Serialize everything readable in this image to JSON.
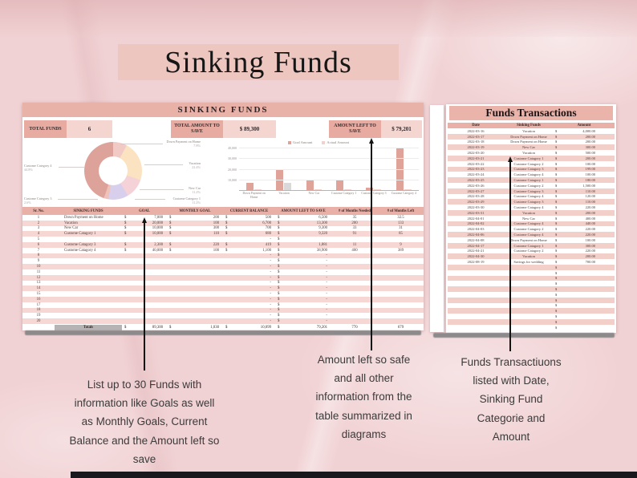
{
  "page": {
    "banner_title": "Sinking Funds"
  },
  "sheet": {
    "title": "SINKING FUNDS",
    "summary": {
      "total_funds_label": "TOTAL FUNDS",
      "total_funds_value": "6",
      "total_amount_label": "TOTAL AMOUNT TO SAVE",
      "total_amount_value": "$ 89,300",
      "amount_left_label": "AMOUNT LEFT TO SAVE",
      "amount_left_value": "$ 79,201"
    },
    "table": {
      "headers": [
        "Sr. No.",
        "SINKING FUNDS",
        "GOAL",
        "MONTHLY GOAL",
        "CURRENT BALANCE",
        "AMOUNT LEFT TO SAVE",
        "# of Months Needed",
        "# of Months Left"
      ],
      "rows": [
        {
          "sr": "1",
          "name": "Down Payment on Home",
          "g": [
            "$",
            "7,000"
          ],
          "m": [
            "$",
            "200"
          ],
          "b": [
            "$",
            "500"
          ],
          "l": [
            "$",
            "6,500"
          ],
          "n": "35",
          "ml": "32.5"
        },
        {
          "sr": "2",
          "name": "Vacation",
          "g": [
            "$",
            "20,000"
          ],
          "m": [
            "$",
            "100"
          ],
          "b": [
            "$",
            "6,700"
          ],
          "l": [
            "$",
            "13,300"
          ],
          "n": "200",
          "ml": "133"
        },
        {
          "sr": "3",
          "name": "New Car",
          "g": [
            "$",
            "10,000"
          ],
          "m": [
            "$",
            "300"
          ],
          "b": [
            "$",
            "700"
          ],
          "l": [
            "$",
            "9,300"
          ],
          "n": "33",
          "ml": "31"
        },
        {
          "sr": "4",
          "name": "Custome Catagory 1",
          "g": [
            "$",
            "10,000"
          ],
          "m": [
            "$",
            "110"
          ],
          "b": [
            "$",
            "680"
          ],
          "l": [
            "$",
            "9,320"
          ],
          "n": "91",
          "ml": "85"
        },
        {
          "sr": "5",
          "name": "",
          "g": [
            "",
            ""
          ],
          "m": [
            "",
            ""
          ],
          "b": [
            "",
            "-"
          ],
          "l": [
            "$",
            ""
          ],
          "n": "",
          "ml": ""
        },
        {
          "sr": "6",
          "name": "Custome Catagory 3",
          "g": [
            "$",
            "2,300"
          ],
          "m": [
            "$",
            "220"
          ],
          "b": [
            "$",
            "419"
          ],
          "l": [
            "$",
            "1,881"
          ],
          "n": "11",
          "ml": "9"
        },
        {
          "sr": "7",
          "name": "Custome Catagory 4",
          "g": [
            "$",
            "40,000"
          ],
          "m": [
            "$",
            "100"
          ],
          "b": [
            "$",
            "1,100"
          ],
          "l": [
            "$",
            "38,900"
          ],
          "n": "400",
          "ml": "389"
        },
        {
          "sr": "8",
          "name": "",
          "g": [
            "",
            ""
          ],
          "m": [
            "",
            ""
          ],
          "b": [
            "",
            "-"
          ],
          "l": [
            "$",
            "-"
          ],
          "n": "",
          "ml": ""
        },
        {
          "sr": "9",
          "name": "",
          "g": [
            "",
            ""
          ],
          "m": [
            "",
            ""
          ],
          "b": [
            "",
            "-"
          ],
          "l": [
            "$",
            "-"
          ],
          "n": "",
          "ml": ""
        },
        {
          "sr": "10",
          "name": "",
          "g": [
            "",
            ""
          ],
          "m": [
            "",
            ""
          ],
          "b": [
            "",
            "-"
          ],
          "l": [
            "$",
            "-"
          ],
          "n": "",
          "ml": ""
        },
        {
          "sr": "11",
          "name": "",
          "g": [
            "",
            ""
          ],
          "m": [
            "",
            ""
          ],
          "b": [
            "",
            "-"
          ],
          "l": [
            "$",
            "-"
          ],
          "n": "",
          "ml": ""
        },
        {
          "sr": "12",
          "name": "",
          "g": [
            "",
            ""
          ],
          "m": [
            "",
            ""
          ],
          "b": [
            "",
            "-"
          ],
          "l": [
            "$",
            "-"
          ],
          "n": "",
          "ml": ""
        },
        {
          "sr": "13",
          "name": "",
          "g": [
            "",
            ""
          ],
          "m": [
            "",
            ""
          ],
          "b": [
            "",
            "-"
          ],
          "l": [
            "$",
            "-"
          ],
          "n": "",
          "ml": ""
        },
        {
          "sr": "14",
          "name": "",
          "g": [
            "",
            ""
          ],
          "m": [
            "",
            ""
          ],
          "b": [
            "",
            "-"
          ],
          "l": [
            "$",
            "-"
          ],
          "n": "",
          "ml": ""
        },
        {
          "sr": "15",
          "name": "",
          "g": [
            "",
            ""
          ],
          "m": [
            "",
            ""
          ],
          "b": [
            "",
            "-"
          ],
          "l": [
            "$",
            "-"
          ],
          "n": "",
          "ml": ""
        },
        {
          "sr": "16",
          "name": "",
          "g": [
            "",
            ""
          ],
          "m": [
            "",
            ""
          ],
          "b": [
            "",
            "-"
          ],
          "l": [
            "$",
            "-"
          ],
          "n": "",
          "ml": ""
        },
        {
          "sr": "17",
          "name": "",
          "g": [
            "",
            ""
          ],
          "m": [
            "",
            ""
          ],
          "b": [
            "",
            "-"
          ],
          "l": [
            "$",
            "-"
          ],
          "n": "",
          "ml": ""
        },
        {
          "sr": "18",
          "name": "",
          "g": [
            "",
            ""
          ],
          "m": [
            "",
            ""
          ],
          "b": [
            "",
            "-"
          ],
          "l": [
            "$",
            "-"
          ],
          "n": "",
          "ml": ""
        },
        {
          "sr": "19",
          "name": "",
          "g": [
            "",
            ""
          ],
          "m": [
            "",
            ""
          ],
          "b": [
            "",
            "-"
          ],
          "l": [
            "$",
            "-"
          ],
          "n": "",
          "ml": ""
        },
        {
          "sr": "20",
          "name": "",
          "g": [
            "",
            ""
          ],
          "m": [
            "",
            ""
          ],
          "b": [
            "",
            "-"
          ],
          "l": [
            "$",
            "-"
          ],
          "n": "",
          "ml": ""
        }
      ],
      "totals": {
        "label": "Totals",
        "g": [
          "$",
          "89,300"
        ],
        "m": [
          "$",
          "1,030"
        ],
        "b": [
          "$",
          "10,099"
        ],
        "l": [
          "$",
          "79,201"
        ],
        "n": "770",
        "ml": "679"
      }
    }
  },
  "chart_data": [
    {
      "type": "pie",
      "subtype": "donut",
      "title": "",
      "slices": [
        {
          "label": "Down Payment on Home",
          "pct_label": "7.8%",
          "value": 7.8,
          "color": "#f1cac6"
        },
        {
          "label": "Vacation",
          "pct_label": "22.4%",
          "value": 22.4,
          "color": "#fbe3c1"
        },
        {
          "label": "New Car",
          "pct_label": "11.2%",
          "value": 11.2,
          "color": "#f4d2d7"
        },
        {
          "label": "Custome Category 1",
          "pct_label": "11.2%",
          "value": 11.2,
          "color": "#d8cfec"
        },
        {
          "label": "Custome Category 3",
          "pct_label": "2.6%",
          "value": 2.6,
          "color": "#eec2bb"
        },
        {
          "label": "Custome Category 4",
          "pct_label": "44.8%",
          "value": 44.8,
          "color": "#dda29a"
        }
      ],
      "legend_position": "outside-labels-with-leader-lines"
    },
    {
      "type": "bar",
      "title": "",
      "categories": [
        "Down Payment on Home",
        "Vacation",
        "New Car",
        "Custome Category 1",
        "Custome Category 3",
        "Custome Category 4"
      ],
      "series": [
        {
          "name": "Goal Amount",
          "color": "#dfa39a",
          "values": [
            7000,
            20000,
            10000,
            10000,
            2300,
            40000
          ]
        },
        {
          "name": "Actual Amount",
          "color": "#f2d0cb",
          "values": [
            500,
            6700,
            700,
            680,
            419,
            1100
          ]
        }
      ],
      "actual_bar_colors": [
        "#f2d0cb",
        "#d9d9d9",
        "#f2d0cb",
        "#f2d0cb",
        "#f2d0cb",
        "#f2d0cb"
      ],
      "ylim": [
        0,
        40000
      ],
      "yticks": [
        "40,000",
        "30,000",
        "20,000",
        "10,000"
      ],
      "grid": true,
      "legend_position": "top"
    }
  ],
  "transactions": {
    "title": "Funds Transactions",
    "headers": [
      "Date",
      "Sinking Funds",
      "Amount"
    ],
    "rows": [
      [
        "2022-03-16",
        "Vacation",
        "4,000.00"
      ],
      [
        "2022-03-17",
        "Down Payment on Home",
        "200.00"
      ],
      [
        "2022-03-18",
        "Down Payment on Home",
        "200.00"
      ],
      [
        "2022-03-19",
        "New Car",
        "300.00"
      ],
      [
        "2022-03-20",
        "Vacation",
        "500.00"
      ],
      [
        "2022-03-21",
        "Custome Catagory 1",
        "200.00"
      ],
      [
        "2022-03-22",
        "Custome Catagory 2",
        "100.00"
      ],
      [
        "2022-03-23",
        "Custome Catagory 3",
        "199.00"
      ],
      [
        "2022-03-24",
        "Custome Catagory 4",
        "100.00"
      ],
      [
        "2022-03-25",
        "Custome Catagory 1",
        "180.00"
      ],
      [
        "2022-03-26",
        "Custome Catagory 2",
        "1,500.00"
      ],
      [
        "2022-03-27",
        "Custome Catagory 3",
        "110.00"
      ],
      [
        "2022-03-28",
        "Custome Catagory 4",
        "120.00"
      ],
      [
        "2022-03-29",
        "Custome Catagory 3",
        "110.00"
      ],
      [
        "2022-03-30",
        "Custome Catagory 4",
        "220.00"
      ],
      [
        "2022-03-31",
        "Vacation",
        "200.00"
      ],
      [
        "2022-04-01",
        "New Car",
        "400.00"
      ],
      [
        "2022-04-02",
        "Custome Catagory 4",
        "440.00"
      ],
      [
        "2022-04-03",
        "Custome Catagory 2",
        "220.00"
      ],
      [
        "2022-04-06",
        "Custome Catagory 4",
        "220.00"
      ],
      [
        "2022-04-08",
        "Down Payment on Home",
        "100.00"
      ],
      [
        "2022-04-17",
        "Custome Catagory 1",
        "300.00"
      ],
      [
        "2022-04-21",
        "Custome Catagory 2",
        "220.00"
      ],
      [
        "2022-04-30",
        "Vacation",
        "200.00"
      ],
      [
        "2022-08-19",
        "Savings for wedding",
        "700.00"
      ],
      [
        "",
        "",
        ""
      ],
      [
        "",
        "",
        ""
      ],
      [
        "",
        "",
        ""
      ],
      [
        "",
        "",
        ""
      ],
      [
        "",
        "",
        ""
      ],
      [
        "",
        "",
        ""
      ],
      [
        "",
        "",
        ""
      ],
      [
        "",
        "",
        ""
      ],
      [
        "",
        "",
        ""
      ],
      [
        "",
        "",
        ""
      ],
      [
        "",
        "",
        ""
      ],
      [
        "",
        "",
        ""
      ]
    ]
  },
  "annotations": {
    "left": "List up to 30 Funds with information like Goals as well as Monthly Goals, Current Balance and the Amount left so save",
    "middle": "Amount left so safe and all other information from the table summarized in diagrams",
    "right": "Funds Transactiuons listed with Date, Sinking Fund Categorie and Amount"
  },
  "colors": {
    "accent_band": "#e9b2a9",
    "accent_header": "#e9b0a8",
    "row_alt_main": "#f6d7d3",
    "row_alt_tx": "#f3cfca",
    "banner_bg": "#ecc6bf"
  }
}
